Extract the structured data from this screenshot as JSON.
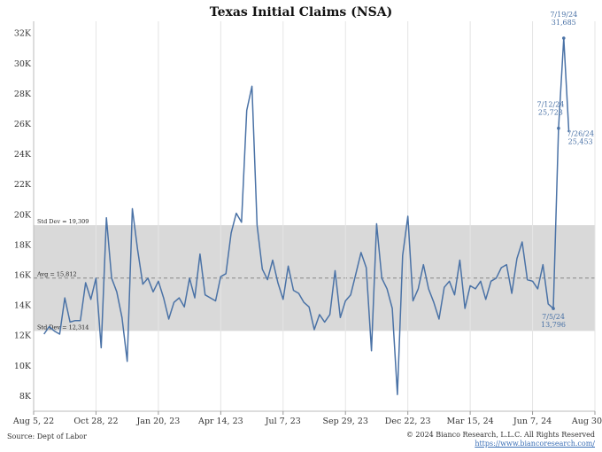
{
  "title": "Texas Initial Claims (NSA)",
  "source": "Source: Dept of Labor",
  "copyright": "© 2024 Bianco Research, L.L.C. All Rights Reserved",
  "url": "https://www.biancoresearch.com/",
  "colors": {
    "line": "#4a72a6",
    "band": "#d9d9d9",
    "avg": "#888888"
  },
  "chart_data": {
    "type": "line",
    "title": "Texas Initial Claims (NSA)",
    "xlabel": "",
    "ylabel": "",
    "ylim": [
      7000,
      32800
    ],
    "xlim": [
      "2022-08-05",
      "2024-08-30"
    ],
    "y_ticks": [
      8000,
      10000,
      12000,
      14000,
      16000,
      18000,
      20000,
      22000,
      24000,
      26000,
      28000,
      30000,
      32000
    ],
    "y_tick_labels": [
      "8K",
      "10K",
      "12K",
      "14K",
      "16K",
      "18K",
      "20K",
      "22K",
      "24K",
      "26K",
      "28K",
      "30K",
      "32K"
    ],
    "x_ticks": [
      "2022-08-05",
      "2022-10-28",
      "2023-01-20",
      "2023-04-14",
      "2023-07-07",
      "2023-09-29",
      "2023-12-22",
      "2024-03-15",
      "2024-06-07",
      "2024-08-30"
    ],
    "x_tick_labels": [
      "Aug 5, 22",
      "Oct 28, 22",
      "Jan 20, 23",
      "Apr 14, 23",
      "Jul 7, 23",
      "Sep 29, 23",
      "Dec 22, 23",
      "Mar 15, 24",
      "Jun 7, 24",
      "Aug 30, 24"
    ],
    "grid": "vertical",
    "bands": {
      "avg": 15812,
      "upper": 19309,
      "lower": 12314,
      "avg_label": "Avg = 15,812",
      "upper_label": "Std Dev = 19,309",
      "lower_label": "Std Dev = 12,314"
    },
    "series": [
      {
        "values": [
          [
            "2022-08-19",
            12100
          ],
          [
            "2022-08-26",
            12600
          ],
          [
            "2022-09-02",
            12300
          ],
          [
            "2022-09-09",
            12100
          ],
          [
            "2022-09-16",
            14500
          ],
          [
            "2022-09-23",
            12900
          ],
          [
            "2022-09-30",
            13000
          ],
          [
            "2022-10-07",
            13000
          ],
          [
            "2022-10-14",
            15500
          ],
          [
            "2022-10-21",
            14400
          ],
          [
            "2022-10-28",
            15800
          ],
          [
            "2022-11-04",
            11200
          ],
          [
            "2022-11-11",
            19800
          ],
          [
            "2022-11-18",
            15800
          ],
          [
            "2022-11-25",
            14900
          ],
          [
            "2022-12-02",
            13200
          ],
          [
            "2022-12-09",
            10300
          ],
          [
            "2022-12-16",
            20400
          ],
          [
            "2022-12-23",
            17700
          ],
          [
            "2022-12-30",
            15400
          ],
          [
            "2023-01-06",
            15800
          ],
          [
            "2023-01-13",
            14900
          ],
          [
            "2023-01-20",
            15600
          ],
          [
            "2023-01-27",
            14500
          ],
          [
            "2023-02-03",
            13100
          ],
          [
            "2023-02-10",
            14200
          ],
          [
            "2023-02-17",
            14500
          ],
          [
            "2023-02-24",
            13900
          ],
          [
            "2023-03-03",
            15800
          ],
          [
            "2023-03-10",
            14500
          ],
          [
            "2023-03-17",
            17400
          ],
          [
            "2023-03-24",
            14700
          ],
          [
            "2023-03-31",
            14500
          ],
          [
            "2023-04-07",
            14300
          ],
          [
            "2023-04-14",
            15900
          ],
          [
            "2023-04-21",
            16100
          ],
          [
            "2023-04-28",
            18800
          ],
          [
            "2023-05-05",
            20100
          ],
          [
            "2023-05-12",
            19500
          ],
          [
            "2023-05-19",
            26900
          ],
          [
            "2023-05-26",
            28500
          ],
          [
            "2023-06-02",
            19300
          ],
          [
            "2023-06-09",
            16400
          ],
          [
            "2023-06-16",
            15700
          ],
          [
            "2023-06-23",
            17000
          ],
          [
            "2023-06-30",
            15500
          ],
          [
            "2023-07-07",
            14400
          ],
          [
            "2023-07-14",
            16600
          ],
          [
            "2023-07-21",
            15000
          ],
          [
            "2023-07-28",
            14800
          ],
          [
            "2023-08-04",
            14200
          ],
          [
            "2023-08-11",
            13900
          ],
          [
            "2023-08-18",
            12400
          ],
          [
            "2023-08-25",
            13400
          ],
          [
            "2023-09-01",
            12900
          ],
          [
            "2023-09-08",
            13400
          ],
          [
            "2023-09-15",
            16300
          ],
          [
            "2023-09-22",
            13200
          ],
          [
            "2023-09-29",
            14300
          ],
          [
            "2023-10-06",
            14700
          ],
          [
            "2023-10-13",
            16100
          ],
          [
            "2023-10-20",
            17500
          ],
          [
            "2023-10-27",
            16500
          ],
          [
            "2023-11-03",
            11000
          ],
          [
            "2023-11-10",
            19400
          ],
          [
            "2023-11-17",
            15800
          ],
          [
            "2023-11-24",
            15100
          ],
          [
            "2023-12-01",
            13800
          ],
          [
            "2023-12-08",
            8100
          ],
          [
            "2023-12-15",
            17300
          ],
          [
            "2023-12-22",
            19900
          ],
          [
            "2023-12-29",
            14300
          ],
          [
            "2024-01-05",
            15100
          ],
          [
            "2024-01-12",
            16700
          ],
          [
            "2024-01-19",
            15100
          ],
          [
            "2024-01-26",
            14200
          ],
          [
            "2024-02-02",
            13100
          ],
          [
            "2024-02-09",
            15200
          ],
          [
            "2024-02-16",
            15600
          ],
          [
            "2024-02-23",
            14700
          ],
          [
            "2024-03-01",
            17000
          ],
          [
            "2024-03-08",
            13800
          ],
          [
            "2024-03-15",
            15300
          ],
          [
            "2024-03-22",
            15100
          ],
          [
            "2024-03-29",
            15600
          ],
          [
            "2024-04-05",
            14400
          ],
          [
            "2024-04-12",
            15600
          ],
          [
            "2024-04-19",
            15800
          ],
          [
            "2024-04-26",
            16500
          ],
          [
            "2024-05-03",
            16700
          ],
          [
            "2024-05-10",
            14800
          ],
          [
            "2024-05-17",
            17100
          ],
          [
            "2024-05-24",
            18200
          ],
          [
            "2024-05-31",
            15700
          ],
          [
            "2024-06-07",
            15600
          ],
          [
            "2024-06-14",
            15100
          ],
          [
            "2024-06-21",
            16700
          ],
          [
            "2024-06-28",
            14100
          ],
          [
            "2024-07-05",
            13796
          ],
          [
            "2024-07-12",
            25723
          ],
          [
            "2024-07-19",
            31685
          ],
          [
            "2024-07-26",
            25453
          ]
        ]
      }
    ],
    "annotations": [
      {
        "date": "2024-07-05",
        "value": 13796,
        "label1": "7/5/24",
        "label2": "13,796"
      },
      {
        "date": "2024-07-12",
        "value": 25723,
        "label1": "7/12/24",
        "label2": "25,723"
      },
      {
        "date": "2024-07-19",
        "value": 31685,
        "label1": "7/19/24",
        "label2": "31,685"
      },
      {
        "date": "2024-07-26",
        "value": 25453,
        "label1": "7/26/24",
        "label2": "25,453"
      }
    ]
  }
}
